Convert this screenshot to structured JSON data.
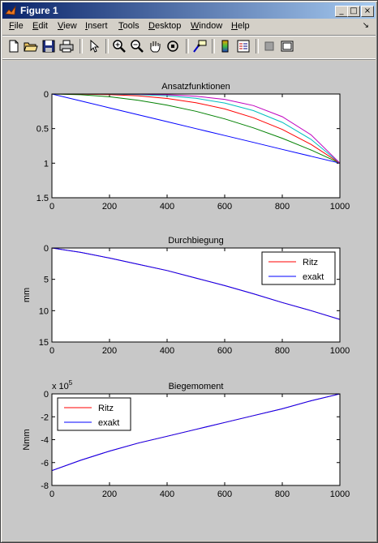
{
  "window": {
    "title": "Figure 1",
    "controls": [
      "minimize-icon",
      "maximize-icon",
      "close-icon"
    ]
  },
  "menubar": {
    "items": [
      {
        "ul": "F",
        "rest": "ile"
      },
      {
        "ul": "E",
        "rest": "dit"
      },
      {
        "ul": "V",
        "rest": "iew"
      },
      {
        "ul": "I",
        "rest": "nsert"
      },
      {
        "ul": "T",
        "rest": "ools"
      },
      {
        "ul": "D",
        "rest": "esktop"
      },
      {
        "ul": "W",
        "rest": "indow"
      },
      {
        "ul": "H",
        "rest": "elp"
      }
    ],
    "dock_arrow": "↘"
  },
  "toolbar": {
    "icons": [
      "new-figure-icon",
      "open-file-icon",
      "save-icon",
      "print-icon",
      "select-arrow-icon",
      "zoom-in-icon",
      "zoom-out-icon",
      "pan-hand-icon",
      "rotate-3d-icon",
      "data-cursor-icon",
      "colorbar-icon",
      "legend-icon",
      "hide-plot-tools-icon",
      "show-plot-tools-icon"
    ]
  },
  "colors": {
    "axes_bg": "#ffffff",
    "figure_bg": "#c8c8c8",
    "ritz": "#ff0000",
    "exakt": "#0000ff"
  },
  "chart_data": [
    {
      "type": "line",
      "title": "Ansatzfunktionen",
      "xlabel": "",
      "ylabel": "",
      "xlim": [
        0,
        1000
      ],
      "ylim": [
        0,
        1.5
      ],
      "y_reversed": true,
      "xticks": [
        0,
        200,
        400,
        600,
        800,
        1000
      ],
      "yticks": [
        0,
        0.5,
        1,
        1.5
      ],
      "ytick_labels": [
        "0",
        "0.5",
        "1",
        "1.5"
      ],
      "series": [
        {
          "color": "#0000ff",
          "x": [
            0,
            100,
            200,
            300,
            400,
            500,
            600,
            700,
            800,
            900,
            1000
          ],
          "y": [
            0,
            0.1,
            0.2,
            0.3,
            0.4,
            0.5,
            0.6,
            0.7,
            0.8,
            0.9,
            1.0
          ]
        },
        {
          "color": "#008000",
          "x": [
            0,
            100,
            200,
            300,
            400,
            500,
            600,
            700,
            800,
            900,
            1000
          ],
          "y": [
            0,
            0.01,
            0.04,
            0.09,
            0.16,
            0.25,
            0.36,
            0.49,
            0.64,
            0.81,
            1.0
          ]
        },
        {
          "color": "#ff0000",
          "x": [
            0,
            100,
            200,
            300,
            400,
            500,
            600,
            700,
            800,
            900,
            1000
          ],
          "y": [
            0,
            0.001,
            0.008,
            0.027,
            0.064,
            0.125,
            0.216,
            0.343,
            0.512,
            0.729,
            1.0
          ]
        },
        {
          "color": "#00bfbf",
          "x": [
            0,
            100,
            200,
            300,
            400,
            500,
            600,
            700,
            800,
            900,
            1000
          ],
          "y": [
            0,
            0.0001,
            0.0016,
            0.0081,
            0.0256,
            0.0625,
            0.1296,
            0.2401,
            0.4096,
            0.6561,
            1.0
          ]
        },
        {
          "color": "#bf00bf",
          "x": [
            0,
            100,
            200,
            300,
            400,
            500,
            600,
            700,
            800,
            900,
            1000
          ],
          "y": [
            0,
            1e-05,
            0.00032,
            0.00243,
            0.01024,
            0.03125,
            0.07776,
            0.16807,
            0.32768,
            0.59049,
            1.0
          ]
        }
      ]
    },
    {
      "type": "line",
      "title": "Durchbiegung",
      "xlabel": "",
      "ylabel": "mm",
      "xlim": [
        0,
        1000
      ],
      "ylim": [
        0,
        15
      ],
      "y_reversed": true,
      "xticks": [
        0,
        200,
        400,
        600,
        800,
        1000
      ],
      "yticks": [
        0,
        5,
        10,
        15
      ],
      "ytick_labels": [
        "0",
        "5",
        "10",
        "15"
      ],
      "legend": {
        "position": "top-right",
        "entries": [
          "Ritz",
          "exakt"
        ]
      },
      "series": [
        {
          "name": "Ritz",
          "color": "#ff0000",
          "x": [
            0,
            100,
            200,
            300,
            400,
            500,
            600,
            700,
            800,
            900,
            1000
          ],
          "y": [
            0,
            0.7,
            1.6,
            2.6,
            3.6,
            4.8,
            6.0,
            7.3,
            8.7,
            10.0,
            11.4
          ]
        },
        {
          "name": "exakt",
          "color": "#0000ff",
          "x": [
            0,
            100,
            200,
            300,
            400,
            500,
            600,
            700,
            800,
            900,
            1000
          ],
          "y": [
            0,
            0.7,
            1.6,
            2.6,
            3.6,
            4.8,
            6.0,
            7.3,
            8.7,
            10.0,
            11.4
          ]
        }
      ]
    },
    {
      "type": "line",
      "title": "Biegemoment",
      "xlabel": "",
      "ylabel": "Nmm",
      "xlim": [
        0,
        1000
      ],
      "ylim": [
        -8,
        0
      ],
      "y_reversed": false,
      "scale_label_base": "x 10",
      "scale_label_exp": "5",
      "xticks": [
        0,
        200,
        400,
        600,
        800,
        1000
      ],
      "yticks": [
        -8,
        -6,
        -4,
        -2,
        0
      ],
      "ytick_labels": [
        "-8",
        "-6",
        "-4",
        "-2",
        "0"
      ],
      "legend": {
        "position": "top-left",
        "entries": [
          "Ritz",
          "exakt"
        ]
      },
      "series": [
        {
          "name": "Ritz",
          "color": "#ff0000",
          "x": [
            0,
            100,
            200,
            300,
            400,
            500,
            600,
            700,
            800,
            900,
            1000
          ],
          "y": [
            -6.7,
            -5.8,
            -5.0,
            -4.3,
            -3.7,
            -3.1,
            -2.5,
            -1.9,
            -1.3,
            -0.6,
            0
          ]
        },
        {
          "name": "exakt",
          "color": "#0000ff",
          "x": [
            0,
            100,
            200,
            300,
            400,
            500,
            600,
            700,
            800,
            900,
            1000
          ],
          "y": [
            -6.7,
            -5.8,
            -5.0,
            -4.3,
            -3.7,
            -3.1,
            -2.5,
            -1.9,
            -1.3,
            -0.6,
            0
          ]
        }
      ]
    }
  ]
}
